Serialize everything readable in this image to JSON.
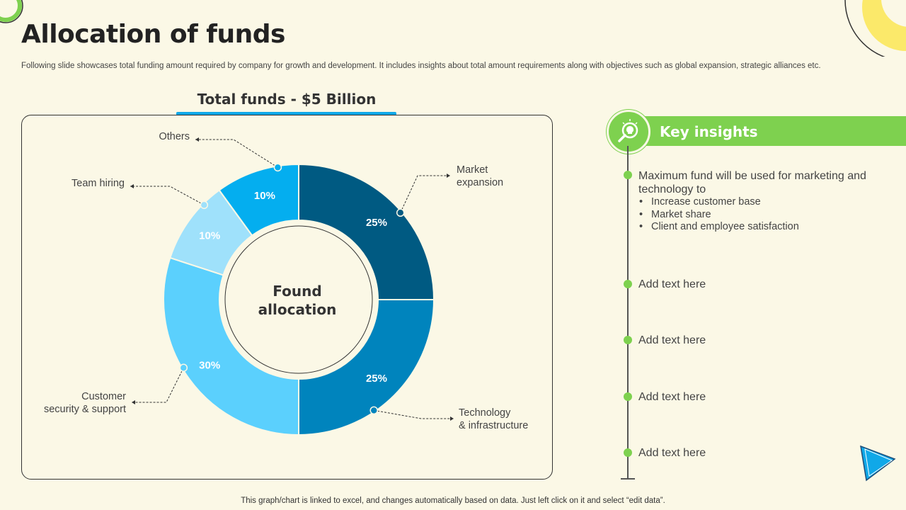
{
  "slide": {
    "title": "Allocation of funds",
    "subtitle": "Following slide showcases total funding amount required by company for growth and development. It includes insights about total amount requirements along with objectives such as global expansion, strategic alliances etc.",
    "footer": "This graph/chart is linked to excel, and changes automatically based on data. Just left click on it and select “edit data”."
  },
  "chart_heading": "Total funds - $5 Billion",
  "chart_data": {
    "type": "pie",
    "variant": "donut",
    "center_label": [
      "Found",
      "allocation"
    ],
    "slices": [
      {
        "label": "Market expansion",
        "label_lines": [
          "Market",
          "expansion"
        ],
        "value": 25,
        "display": "25%",
        "color": "#005a82"
      },
      {
        "label": "Technology & infrastructure",
        "label_lines": [
          "Technology",
          "& infrastructure"
        ],
        "value": 25,
        "display": "25%",
        "color": "#0084bd"
      },
      {
        "label": "Customer security & support",
        "label_lines": [
          "Customer",
          "security & support"
        ],
        "value": 30,
        "display": "30%",
        "color": "#5bd0fd"
      },
      {
        "label": "Team hiring",
        "label_lines": [
          "Team hiring"
        ],
        "value": 10,
        "display": "10%",
        "color": "#9fe1fb"
      },
      {
        "label": "Others",
        "label_lines": [
          "Others"
        ],
        "value": 10,
        "display": "10%",
        "color": "#04aeef"
      }
    ]
  },
  "insights": {
    "title": "Key insights",
    "main": "Maximum fund will be used for marketing and technology to",
    "bullets": [
      "Increase customer base",
      "Market share",
      "Client and employee satisfaction"
    ],
    "items": [
      "Add text here",
      "Add text here",
      "Add text here",
      "Add text here"
    ]
  },
  "colors": {
    "accent_green": "#7ed14f",
    "accent_blue": "#10a8e8",
    "background": "#fbf8e6",
    "decor_yellow": "#fbe96a"
  },
  "icons": [
    "lightbulb-magnifier-icon",
    "play-triangle-icon"
  ]
}
